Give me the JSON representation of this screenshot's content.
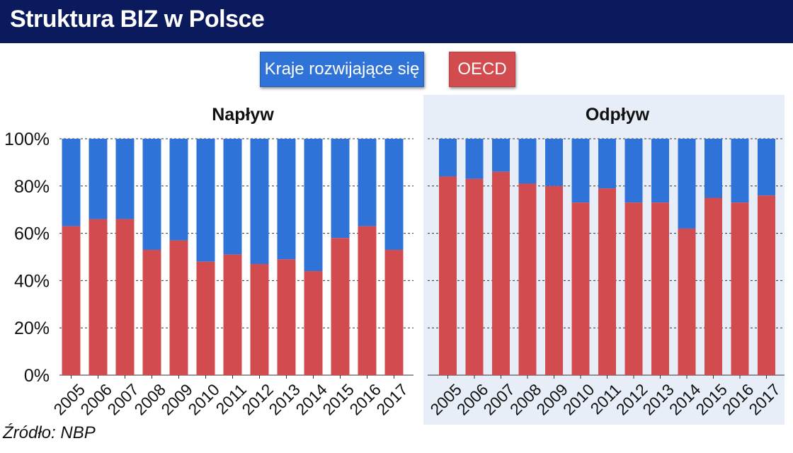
{
  "header": {
    "title": "Struktura BIZ w Polsce"
  },
  "legend": {
    "developing": "Kraje rozwijające się",
    "oecd": "OECD"
  },
  "colors": {
    "developing": "#2f73d9",
    "oecd": "#d24c4f",
    "header_bg": "#0b1a5c",
    "panel_bg": "#e8eef8"
  },
  "source": "Źródło: NBP",
  "chart_data": [
    {
      "type": "bar",
      "stacked": true,
      "title": "Napływ",
      "categories": [
        "2005",
        "2006",
        "2007",
        "2008",
        "2009",
        "2010",
        "2011",
        "2012",
        "2013",
        "2014",
        "2015",
        "2016",
        "2017"
      ],
      "series": [
        {
          "name": "OECD",
          "values": [
            63,
            66,
            66,
            53,
            57,
            48,
            51,
            47,
            49,
            44,
            58,
            63,
            53
          ]
        },
        {
          "name": "Kraje rozwijające się",
          "values": [
            37,
            34,
            34,
            47,
            43,
            52,
            49,
            53,
            51,
            56,
            42,
            37,
            47
          ]
        }
      ],
      "ylim": [
        0,
        100
      ],
      "yticks": [
        "0%",
        "20%",
        "40%",
        "60%",
        "80%",
        "100%"
      ],
      "grid": true
    },
    {
      "type": "bar",
      "stacked": true,
      "title": "Odpływ",
      "categories": [
        "2005",
        "2006",
        "2007",
        "2008",
        "2009",
        "2010",
        "2011",
        "2012",
        "2013",
        "2014",
        "2015",
        "2016",
        "2017"
      ],
      "series": [
        {
          "name": "OECD",
          "values": [
            84,
            83,
            86,
            81,
            80,
            73,
            79,
            73,
            73,
            62,
            75,
            73,
            76
          ]
        },
        {
          "name": "Kraje rozwijające się",
          "values": [
            16,
            17,
            14,
            19,
            20,
            27,
            21,
            27,
            27,
            38,
            25,
            27,
            24
          ]
        }
      ],
      "ylim": [
        0,
        100
      ],
      "grid": true
    }
  ]
}
